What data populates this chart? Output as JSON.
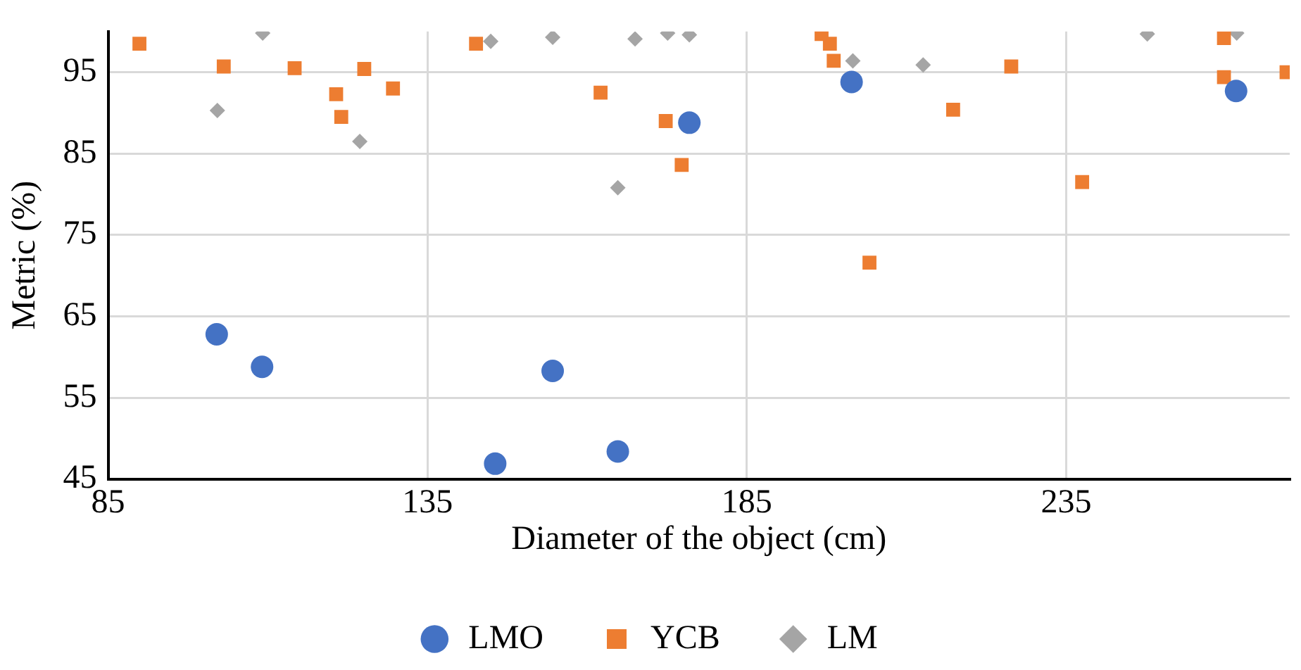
{
  "chart_data": {
    "type": "scatter",
    "xlabel": "Diameter of the object (cm)",
    "ylabel": "Metric (%)",
    "xlim": [
      85,
      270
    ],
    "xticks": [
      85,
      135,
      185,
      235
    ],
    "ylim": [
      45,
      100
    ],
    "yticks": [
      45,
      55,
      65,
      75,
      85,
      95
    ],
    "grid": true,
    "legend": "bottom",
    "series": [
      {
        "name": "LMO",
        "color": "#4472c4",
        "marker": "circle",
        "x": [
          102.0,
          109.1,
          154.6,
          145.6,
          164.8,
          176.0,
          201.4,
          261.6
        ],
        "values": [
          62.8,
          58.8,
          58.3,
          46.9,
          48.4,
          88.8,
          93.8,
          92.7
        ]
      },
      {
        "name": "YCB",
        "color": "#ed7d31",
        "marker": "square",
        "x": [
          89.9,
          103.1,
          114.2,
          125.1,
          129.6,
          120.7,
          121.5,
          142.6,
          162.1,
          172.3,
          174.8,
          196.7,
          198.0,
          198.6,
          204.2,
          226.4,
          217.3,
          237.5,
          259.7,
          259.7,
          269.5
        ],
        "values": [
          98.5,
          95.7,
          95.5,
          95.4,
          93.0,
          92.3,
          89.5,
          98.5,
          92.5,
          89.0,
          83.6,
          99.7,
          98.5,
          96.4,
          71.6,
          95.7,
          90.4,
          81.5,
          99.2,
          94.4,
          95.0
        ]
      },
      {
        "name": "LM",
        "color": "#a5a5a5",
        "marker": "diamond",
        "x": [
          109.2,
          102.1,
          124.4,
          144.9,
          154.6,
          167.5,
          172.6,
          176.0,
          164.8,
          201.6,
          212.6,
          247.7,
          261.7
        ],
        "values": [
          99.8,
          90.3,
          86.5,
          98.8,
          99.3,
          99.1,
          99.8,
          99.6,
          80.8,
          96.4,
          95.9,
          99.7,
          99.8
        ]
      }
    ]
  }
}
